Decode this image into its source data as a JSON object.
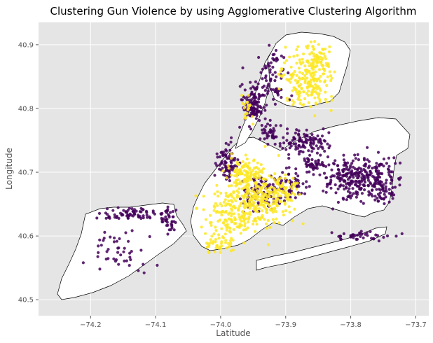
{
  "chart_data": {
    "type": "scatter",
    "title": "Clustering Gun Violence by using Agglomerative Clustering Algorithm",
    "xlabel": "Latitude",
    "ylabel": "Longitude",
    "xlim": [
      -74.28,
      -73.68
    ],
    "ylim": [
      40.475,
      40.935
    ],
    "x_ticks": [
      "−74.2",
      "−74.1",
      "−74.0",
      "−73.9",
      "−73.8",
      "−73.7"
    ],
    "x_tick_values": [
      -74.2,
      -74.1,
      -74.0,
      -73.9,
      -73.8,
      -73.7
    ],
    "y_ticks": [
      "40.5",
      "40.6",
      "40.7",
      "40.8",
      "40.9"
    ],
    "y_tick_values": [
      40.5,
      40.6,
      40.7,
      40.8,
      40.9
    ],
    "grid": true,
    "background": "#e5e5e5",
    "series": [
      {
        "color": "#44015a",
        "clusters": [
          {
            "cx": -73.79,
            "cy": 40.69,
            "rx": 0.045,
            "ry": 0.03,
            "n": 260
          },
          {
            "cx": -73.75,
            "cy": 40.68,
            "rx": 0.02,
            "ry": 0.03,
            "n": 70
          },
          {
            "cx": -73.95,
            "cy": 40.81,
            "rx": 0.015,
            "ry": 0.035,
            "n": 120
          },
          {
            "cx": -73.92,
            "cy": 40.845,
            "rx": 0.02,
            "ry": 0.04,
            "n": 70
          },
          {
            "cx": -73.99,
            "cy": 40.72,
            "rx": 0.015,
            "ry": 0.03,
            "n": 80
          },
          {
            "cx": -73.87,
            "cy": 40.745,
            "rx": 0.03,
            "ry": 0.02,
            "n": 110
          },
          {
            "cx": -73.92,
            "cy": 40.76,
            "rx": 0.015,
            "ry": 0.015,
            "n": 40
          },
          {
            "cx": -73.935,
            "cy": 40.67,
            "rx": 0.03,
            "ry": 0.025,
            "n": 90
          },
          {
            "cx": -73.89,
            "cy": 40.68,
            "rx": 0.02,
            "ry": 0.02,
            "n": 50
          },
          {
            "cx": -74.14,
            "cy": 40.635,
            "rx": 0.04,
            "ry": 0.008,
            "n": 70
          },
          {
            "cx": -74.08,
            "cy": 40.625,
            "rx": 0.012,
            "ry": 0.02,
            "n": 40
          },
          {
            "cx": -74.16,
            "cy": 40.575,
            "rx": 0.05,
            "ry": 0.035,
            "n": 45
          },
          {
            "cx": -73.78,
            "cy": 40.6,
            "rx": 0.05,
            "ry": 0.006,
            "n": 40
          },
          {
            "cx": -73.85,
            "cy": 40.71,
            "rx": 0.02,
            "ry": 0.012,
            "n": 40
          }
        ]
      },
      {
        "color": "#fde725",
        "clusters": [
          {
            "cx": -73.95,
            "cy": 40.66,
            "rx": 0.045,
            "ry": 0.045,
            "n": 300
          },
          {
            "cx": -73.96,
            "cy": 40.7,
            "rx": 0.02,
            "ry": 0.02,
            "n": 70
          },
          {
            "cx": -73.99,
            "cy": 40.63,
            "rx": 0.035,
            "ry": 0.035,
            "n": 90
          },
          {
            "cx": -73.87,
            "cy": 40.845,
            "rx": 0.035,
            "ry": 0.04,
            "n": 200
          },
          {
            "cx": -73.85,
            "cy": 40.88,
            "rx": 0.015,
            "ry": 0.02,
            "n": 50
          },
          {
            "cx": -73.905,
            "cy": 40.67,
            "rx": 0.02,
            "ry": 0.02,
            "n": 60
          },
          {
            "cx": -74.0,
            "cy": 40.59,
            "rx": 0.02,
            "ry": 0.02,
            "n": 40
          },
          {
            "cx": -73.96,
            "cy": 40.8,
            "rx": 0.01,
            "ry": 0.02,
            "n": 20
          }
        ]
      }
    ]
  }
}
